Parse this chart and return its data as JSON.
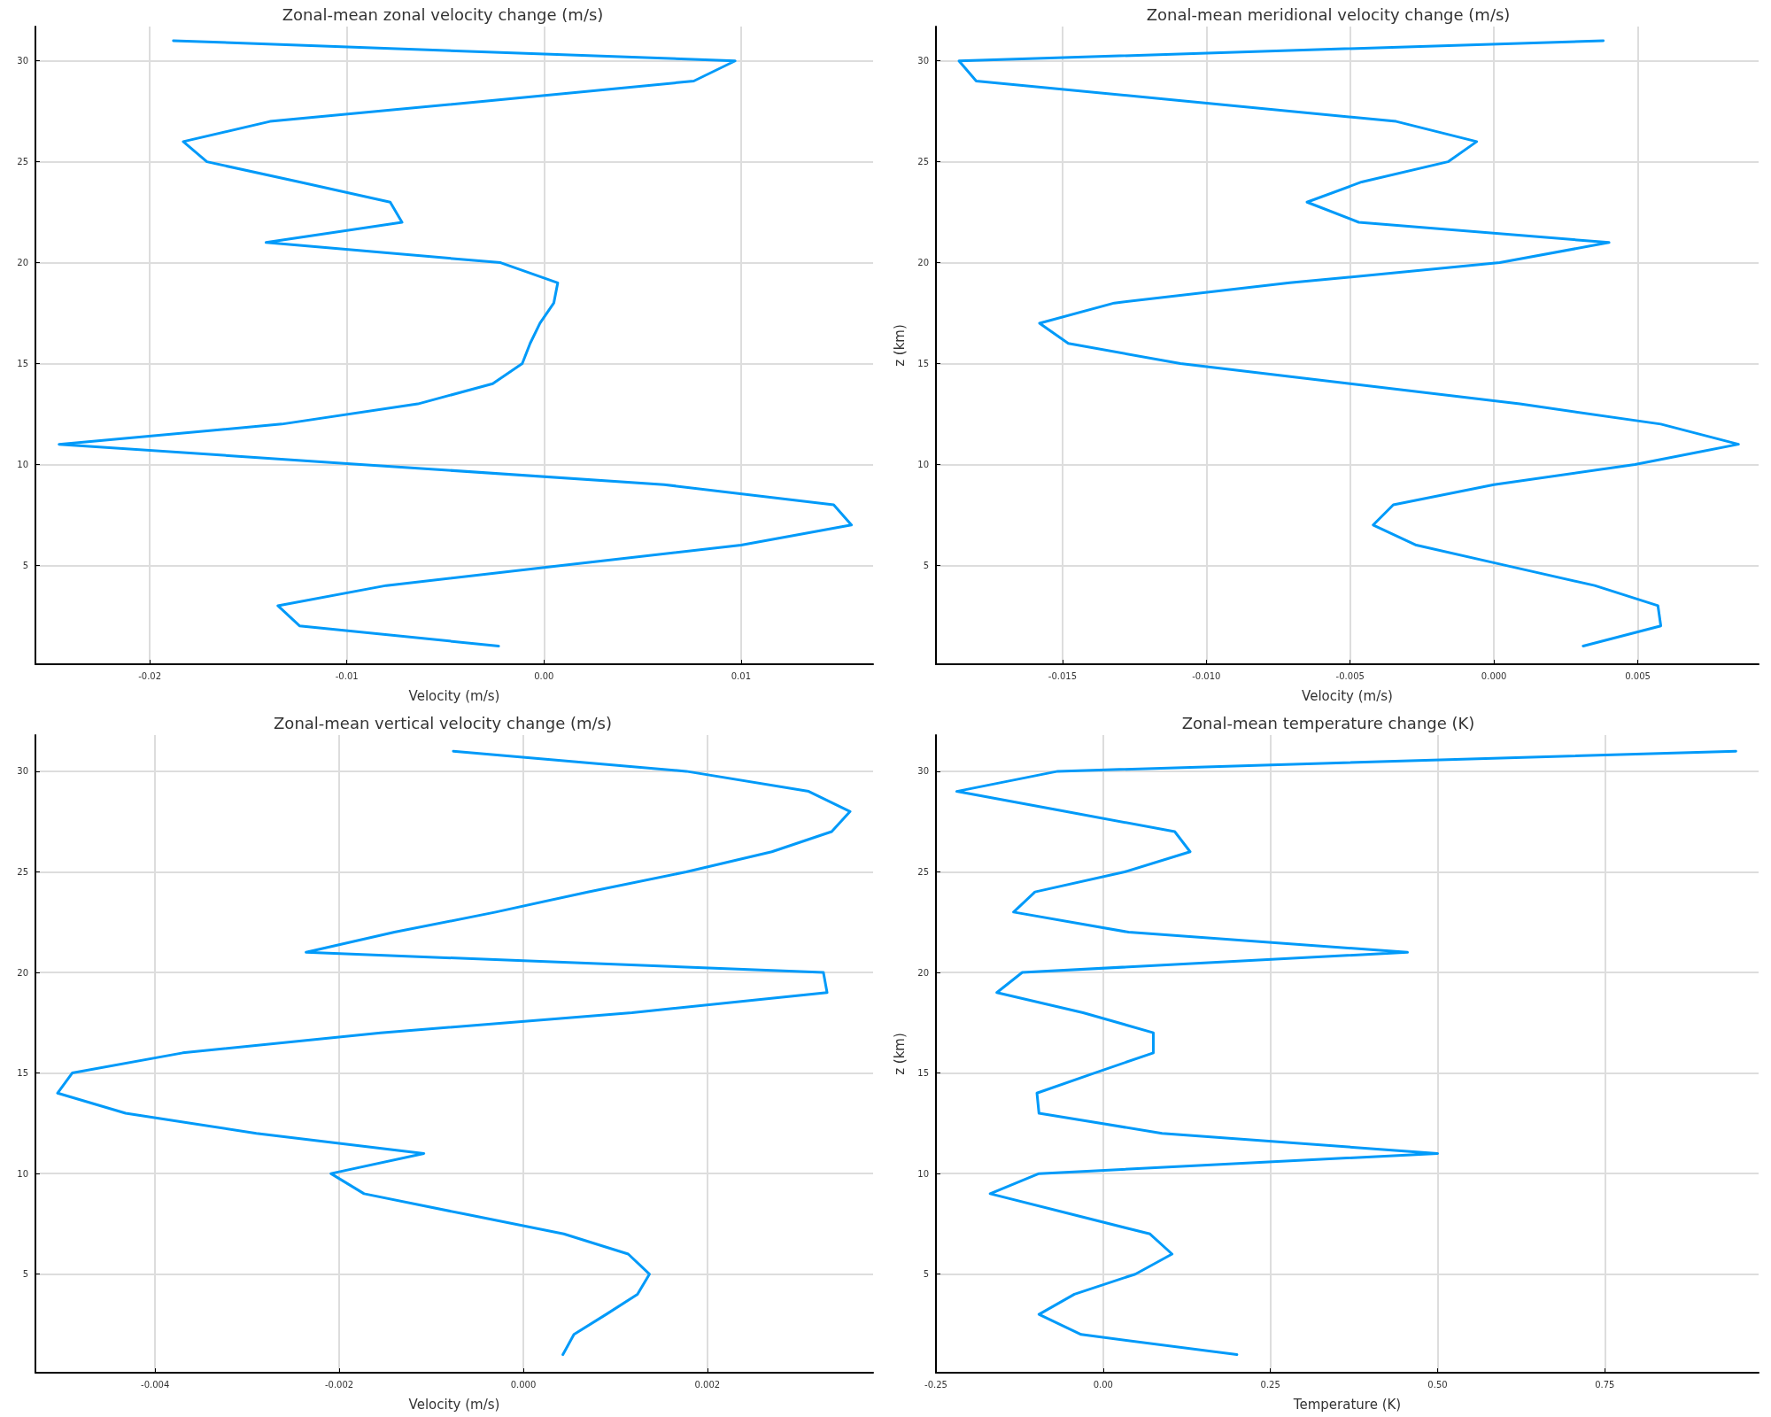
{
  "chart_data": [
    {
      "type": "line",
      "title": "Zonal-mean zonal velocity change (m/s)",
      "xlabel": "Velocity (m/s)",
      "color": "#009af9",
      "grid": true,
      "marker": "none",
      "line_style": "solid",
      "x": [
        -0.0188,
        0.0097,
        0.0076,
        -0.003,
        -0.0139,
        -0.0183,
        -0.0171,
        -0.0124,
        -0.0078,
        -0.0072,
        -0.0141,
        -0.0022,
        0.0007,
        0.0005,
        -0.0002,
        -0.0007,
        -0.0011,
        -0.0026,
        -0.0064,
        -0.0133,
        -0.0246,
        -0.0093,
        0.0061,
        0.0147,
        0.0156,
        0.01,
        0.001,
        -0.008,
        -0.0135,
        -0.0124,
        -0.0023
      ],
      "values": [
        31,
        30,
        29,
        28,
        27,
        26,
        25,
        24,
        23,
        22,
        21,
        20,
        19,
        18,
        17,
        16,
        15,
        14,
        13,
        12,
        11,
        10,
        9,
        8,
        7,
        6,
        5,
        4,
        3,
        2,
        1
      ],
      "xlim": [
        -0.0258,
        0.0167
      ],
      "xticks": [
        -0.02,
        -0.01,
        {
          "value": 0,
          "label": "0.00"
        },
        0.01
      ],
      "ylim": [
        0.1,
        31.7
      ],
      "yticks": [
        5,
        10,
        15,
        20,
        25,
        30
      ]
    },
    {
      "type": "line",
      "title": "Zonal-mean meridional velocity change (m/s)",
      "xlabel": "Velocity (m/s)",
      "ylabel": "z (km)",
      "color": "#009af9",
      "grid": true,
      "marker": "none",
      "line_style": "solid",
      "x": [
        0.0038,
        -0.0186,
        -0.018,
        -0.0107,
        -0.0034,
        -0.0006,
        -0.0016,
        -0.0046,
        -0.0065,
        -0.0047,
        0.004,
        0.0002,
        -0.0071,
        -0.0132,
        -0.0158,
        -0.0148,
        -0.0109,
        -0.005,
        0.0009,
        0.0058,
        0.0085,
        0.0049,
        0.0,
        -0.0035,
        -0.0042,
        -0.0027,
        0.0004,
        0.0035,
        0.0057,
        0.0058,
        0.0031
      ],
      "values": [
        31,
        30,
        29,
        28,
        27,
        26,
        25,
        24,
        23,
        22,
        21,
        20,
        19,
        18,
        17,
        16,
        15,
        14,
        13,
        12,
        11,
        10,
        9,
        8,
        7,
        6,
        5,
        4,
        3,
        2,
        1
      ],
      "xlim": [
        -0.0194,
        0.0092
      ],
      "xticks": [
        {
          "value": -0.015,
          "label": "-0.015"
        },
        {
          "value": -0.01,
          "label": "-0.010"
        },
        {
          "value": -0.005,
          "label": "-0.005"
        },
        {
          "value": 0,
          "label": "0.000"
        },
        {
          "value": 0.005,
          "label": "0.005"
        }
      ],
      "ylim": [
        0.1,
        31.7
      ],
      "yticks": [
        5,
        10,
        15,
        20,
        25,
        30
      ]
    },
    {
      "type": "line",
      "title": "Zonal-mean vertical velocity change (m/s)",
      "xlabel": "Velocity (m/s)",
      "color": "#009af9",
      "grid": true,
      "marker": "none",
      "line_style": "solid",
      "x": [
        -0.00076,
        0.00177,
        0.0031,
        0.00355,
        0.00335,
        0.0027,
        0.00177,
        0.0007,
        -0.0003,
        -0.0014,
        -0.00236,
        0.00326,
        0.0033,
        0.00118,
        -0.00155,
        -0.0037,
        -0.0049,
        -0.00506,
        -0.00432,
        -0.0029,
        -0.00108,
        -0.00209,
        -0.00173,
        -0.00065,
        0.00044,
        0.00114,
        0.00137,
        0.00124,
        0.0009,
        0.00055,
        0.00043
      ],
      "values": [
        31,
        30,
        29,
        28,
        27,
        26,
        25,
        24,
        23,
        22,
        21,
        20,
        19,
        18,
        17,
        16,
        15,
        14,
        13,
        12,
        11,
        10,
        9,
        8,
        7,
        6,
        5,
        4,
        3,
        2,
        1
      ],
      "xlim": [
        -0.0053,
        0.0038
      ],
      "xticks": [
        -0.004,
        -0.002,
        {
          "value": 0,
          "label": "0.000"
        },
        0.002
      ],
      "ylim": [
        0.1,
        31.8
      ],
      "yticks": [
        5,
        10,
        15,
        20,
        25,
        30
      ]
    },
    {
      "type": "line",
      "title": "Zonal-mean temperature change (K)",
      "xlabel": "Temperature (K)",
      "ylabel": "z (km)",
      "color": "#009af9",
      "grid": true,
      "marker": "none",
      "line_style": "solid",
      "x": [
        0.946,
        -0.068,
        -0.219,
        -0.056,
        0.107,
        0.13,
        0.032,
        -0.102,
        -0.134,
        0.038,
        0.455,
        -0.121,
        -0.159,
        -0.03,
        0.075,
        0.075,
        -0.013,
        -0.099,
        -0.096,
        0.088,
        0.5,
        -0.096,
        -0.169,
        -0.05,
        0.07,
        0.103,
        0.048,
        -0.043,
        -0.096,
        -0.033,
        0.2
      ],
      "values": [
        31,
        30,
        29,
        28,
        27,
        26,
        25,
        24,
        23,
        22,
        21,
        20,
        19,
        18,
        17,
        16,
        15,
        14,
        13,
        12,
        11,
        10,
        9,
        8,
        7,
        6,
        5,
        4,
        3,
        2,
        1
      ],
      "xlim": [
        -0.25,
        0.98
      ],
      "xticks": [
        -0.25,
        {
          "value": 0,
          "label": "0.00"
        },
        0.25,
        {
          "value": 0.5,
          "label": "0.50"
        },
        0.75
      ],
      "ylim": [
        0.1,
        31.8
      ],
      "yticks": [
        5,
        10,
        15,
        20,
        25,
        30
      ]
    }
  ]
}
